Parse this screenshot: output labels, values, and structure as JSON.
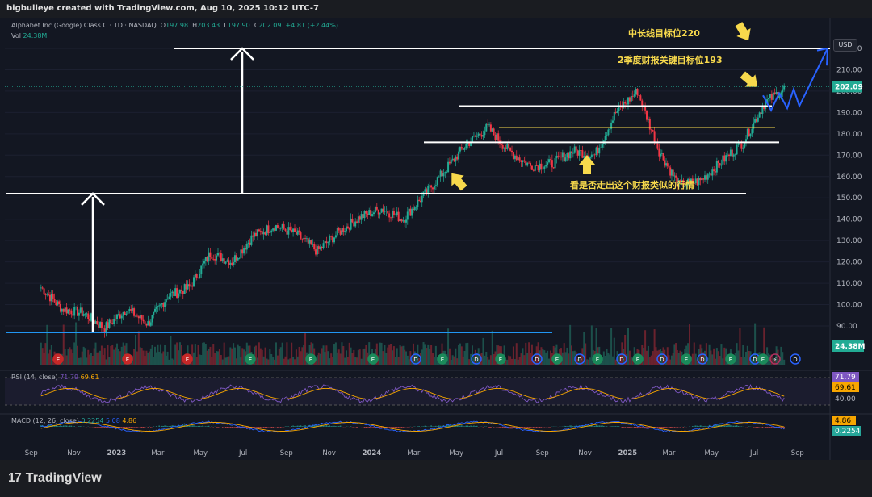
{
  "header": {
    "credit": "bigbulleye created with TradingView.com, Aug 10, 2025 10:12 UTC-7"
  },
  "legend": {
    "symbol": "Alphabet Inc (Google) Class C · 1D · NASDAQ",
    "open_label": "O",
    "open": "197.98",
    "high_label": "H",
    "high": "203.43",
    "low_label": "L",
    "low": "197.90",
    "close_label": "C",
    "close": "202.09",
    "change": "+4.81 (+2.44%)",
    "vol_label": "Vol",
    "vol": "24.38M"
  },
  "rsi_legend": {
    "label": "RSI (14, close)",
    "v1": "71.79",
    "v2": "69.61"
  },
  "macd_legend": {
    "label": "MACD (12, 26, close)",
    "v1": "0.2254",
    "v2": "5.08",
    "v3": "4.86"
  },
  "currency_button": "USD",
  "brand": "TradingView",
  "colors": {
    "bg": "#131722",
    "up": "#22ab94",
    "down": "#f23645",
    "annotation": "#f7d94c",
    "projection": "#2962ff",
    "support": "#2196f3",
    "rsi": "#7e57c2",
    "signal": "#f7a600"
  },
  "chart_data": [
    {
      "type": "candlestick",
      "ylim": [
        80,
        226
      ],
      "price_ticks": [
        90,
        100,
        110,
        120,
        130,
        140,
        150,
        160,
        170,
        180,
        190,
        200,
        210,
        220
      ],
      "x_ticks": [
        "Sep",
        "Nov",
        "2023",
        "Mar",
        "May",
        "Jul",
        "Sep",
        "Nov",
        "2024",
        "Mar",
        "May",
        "Jul",
        "Sep",
        "Nov",
        "2025",
        "Mar",
        "May",
        "Jul",
        "Sep"
      ],
      "last_price_label": "202.09",
      "volume_label": "24.38M",
      "price_path": [
        {
          "t": "2022-09",
          "close": 108
        },
        {
          "t": "2022-10",
          "close": 98
        },
        {
          "t": "2022-11",
          "close": 96
        },
        {
          "t": "2022-12",
          "close": 89
        },
        {
          "t": "2023-01",
          "close": 98
        },
        {
          "t": "2023-02",
          "close": 91
        },
        {
          "t": "2023-03",
          "close": 104
        },
        {
          "t": "2023-04",
          "close": 108
        },
        {
          "t": "2023-05",
          "close": 124
        },
        {
          "t": "2023-06",
          "close": 120
        },
        {
          "t": "2023-07",
          "close": 132
        },
        {
          "t": "2023-08",
          "close": 137
        },
        {
          "t": "2023-09",
          "close": 133
        },
        {
          "t": "2023-10",
          "close": 125
        },
        {
          "t": "2023-11",
          "close": 134
        },
        {
          "t": "2023-12",
          "close": 141
        },
        {
          "t": "2024-01",
          "close": 145
        },
        {
          "t": "2024-02",
          "close": 140
        },
        {
          "t": "2024-03",
          "close": 151
        },
        {
          "t": "2024-04",
          "close": 163
        },
        {
          "t": "2024-05",
          "close": 175
        },
        {
          "t": "2024-06",
          "close": 183
        },
        {
          "t": "2024-07",
          "close": 172
        },
        {
          "t": "2024-08",
          "close": 165
        },
        {
          "t": "2024-09",
          "close": 166
        },
        {
          "t": "2024-10",
          "close": 172
        },
        {
          "t": "2024-11",
          "close": 170
        },
        {
          "t": "2024-12",
          "close": 190
        },
        {
          "t": "2025-01",
          "close": 200
        },
        {
          "t": "2025-02",
          "close": 172
        },
        {
          "t": "2025-03",
          "close": 156
        },
        {
          "t": "2025-04",
          "close": 158
        },
        {
          "t": "2025-05",
          "close": 167
        },
        {
          "t": "2025-06",
          "close": 176
        },
        {
          "t": "2025-07",
          "close": 194
        },
        {
          "t": "2025-08",
          "close": 202
        }
      ],
      "levels": [
        {
          "price": 220,
          "color": "white"
        },
        {
          "price": 193,
          "color": "white"
        },
        {
          "price": 183,
          "color": "yellow"
        },
        {
          "price": 176,
          "color": "white"
        },
        {
          "price": 152,
          "color": "white"
        },
        {
          "price": 87,
          "color": "blue"
        }
      ],
      "annotations": [
        {
          "text": "中长线目标位220"
        },
        {
          "text": "2季度财报关键目标位193"
        },
        {
          "text": "看是否走出这个财报类似的行情"
        }
      ],
      "event_markers": [
        "E",
        "E",
        "E",
        "E",
        "E",
        "E",
        "D",
        "E",
        "D",
        "E",
        "D",
        "E",
        "D",
        "E",
        "D",
        "E",
        "D",
        "E",
        "D",
        "E",
        "D",
        "E",
        "⚡",
        "D"
      ]
    },
    {
      "type": "line",
      "title": "RSI (14, close)",
      "ylim": [
        20,
        90
      ],
      "y_ticks": [
        40
      ],
      "labels": [
        "71.79",
        "69.61",
        "40.00"
      ]
    },
    {
      "type": "line",
      "title": "MACD (12, 26, close)",
      "labels": [
        "4.86",
        "0.2254"
      ]
    }
  ]
}
